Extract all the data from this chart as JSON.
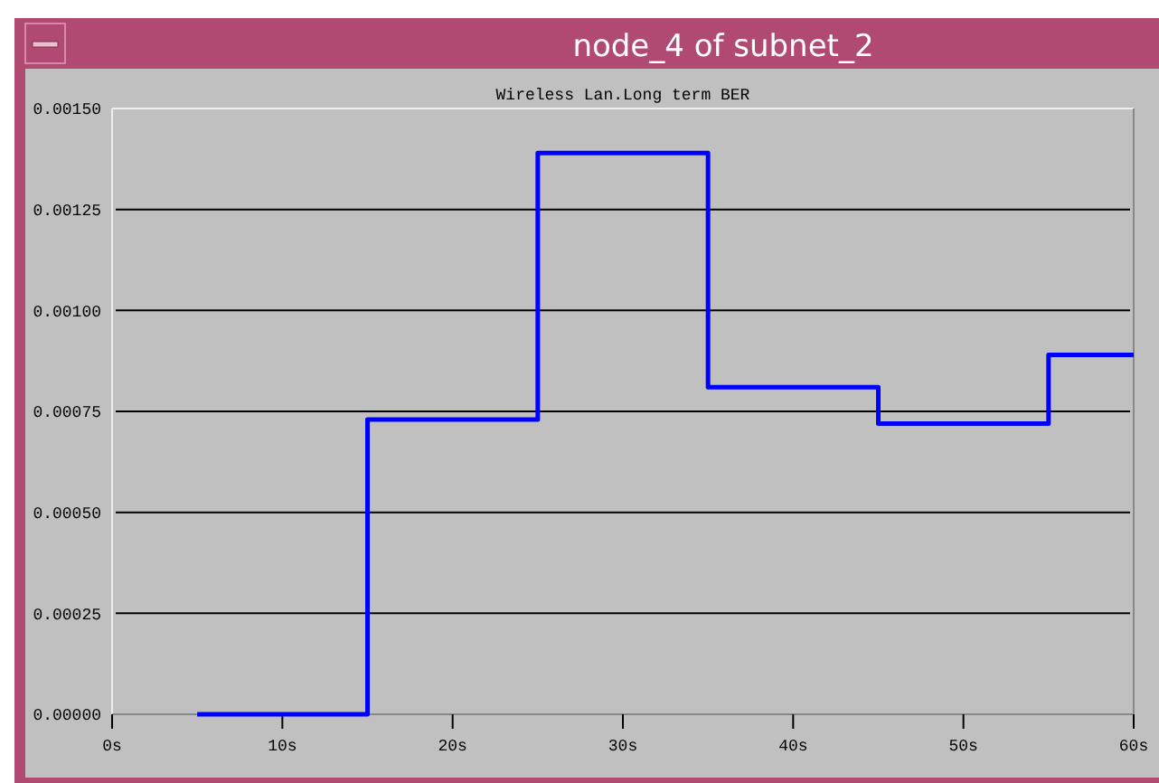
{
  "chart_data": {
    "type": "step",
    "title": "node_4 of subnet_2",
    "subtitle": "Wireless Lan.Long term BER",
    "x": [
      5,
      15,
      25,
      35,
      45,
      55,
      60
    ],
    "series": [
      {
        "color": "#0000ff",
        "values": [
          0,
          0.00073,
          0.00139,
          0.00081,
          0.00072,
          0.00089,
          0.00089
        ]
      }
    ],
    "xlim": [
      0,
      60
    ],
    "xticks": [
      {
        "value": 0,
        "label": "0s"
      },
      {
        "value": 10,
        "label": "10s"
      },
      {
        "value": 20,
        "label": "20s"
      },
      {
        "value": 30,
        "label": "30s"
      },
      {
        "value": 40,
        "label": "40s"
      },
      {
        "value": 50,
        "label": "50s"
      },
      {
        "value": 60,
        "label": "60s"
      }
    ],
    "ylim": [
      0,
      0.0015
    ],
    "yticks": [
      {
        "value": 0,
        "label": "0.00000"
      },
      {
        "value": 0.00025,
        "label": "0.00025"
      },
      {
        "value": 0.0005,
        "label": "0.00050"
      },
      {
        "value": 0.00075,
        "label": "0.00075"
      },
      {
        "value": 0.001,
        "label": "0.00100"
      },
      {
        "value": 0.00125,
        "label": "0.00125"
      },
      {
        "value": 0.0015,
        "label": "0.00150"
      }
    ],
    "grid": "y",
    "marker": "none",
    "line_style": "solid"
  }
}
